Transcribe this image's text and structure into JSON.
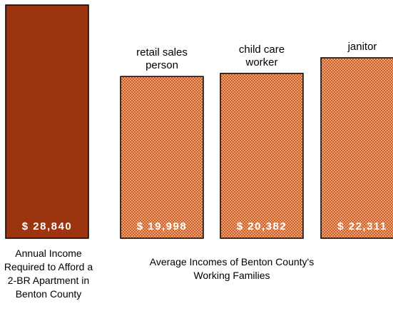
{
  "chart_data": {
    "type": "bar",
    "categories": [
      "Annual Income Required to Afford a 2-BR Apartment in Benton County",
      "retail sales person",
      "child care worker",
      "janitor"
    ],
    "values": [
      28840,
      19998,
      20382,
      22311
    ],
    "value_labels": [
      "$ 28,840",
      "$ 19,998",
      "$ 20,382",
      "$ 22,311"
    ],
    "top_labels": [
      "",
      "retail sales person",
      "child care worker",
      "janitor"
    ],
    "top_label_lines": [
      [],
      [
        "retail sales",
        "person"
      ],
      [
        "child care",
        "worker"
      ],
      [
        "janitor"
      ]
    ],
    "bottom_label_left_lines": [
      "Annual Income",
      "Required to Afford a",
      "2-BR Apartment in",
      "Benton County"
    ],
    "bottom_label_group_lines": [
      "Average Incomes of Benton County's",
      "Working Families"
    ],
    "ylim": [
      0,
      28840
    ],
    "grid": false,
    "colors": {
      "required_bar": "#9c3410",
      "family_bar": "#f0a070",
      "family_pattern_dot": "#c8602c",
      "outline": "#000000",
      "value_text": "#ffffff"
    }
  }
}
